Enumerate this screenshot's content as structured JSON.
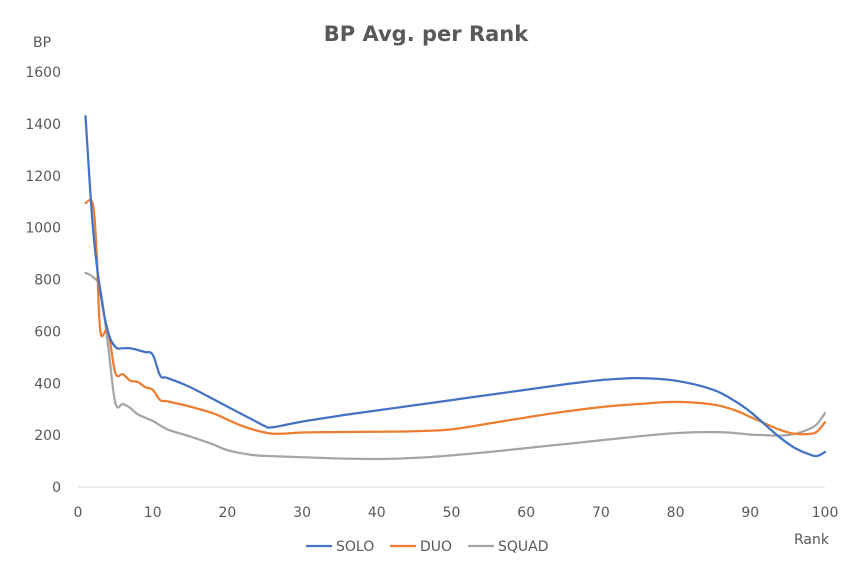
{
  "chart_data": {
    "type": "line",
    "title": "BP Avg. per Rank",
    "xlabel": "Rank",
    "ylabel": "BP",
    "xlim": [
      0,
      100
    ],
    "ylim": [
      0,
      1600
    ],
    "xticks": [
      0,
      10,
      20,
      30,
      40,
      50,
      60,
      70,
      80,
      90,
      100
    ],
    "yticks": [
      0,
      200,
      400,
      600,
      800,
      1000,
      1200,
      1400,
      1600
    ],
    "grid": false,
    "legend": "bottom",
    "colors": {
      "SOLO": "#4472c4",
      "DUO": "#ed7d31",
      "SQUAD": "#a5a5a5"
    },
    "series": [
      {
        "name": "SOLO",
        "points": [
          [
            1,
            1430
          ],
          [
            2,
            1000
          ],
          [
            3,
            750
          ],
          [
            4,
            600
          ],
          [
            5,
            540
          ],
          [
            6,
            535
          ],
          [
            7,
            535
          ],
          [
            8,
            528
          ],
          [
            9,
            520
          ],
          [
            10,
            510
          ],
          [
            11,
            430
          ],
          [
            12,
            420
          ],
          [
            15,
            385
          ],
          [
            20,
            310
          ],
          [
            24,
            250
          ],
          [
            25,
            235
          ],
          [
            26,
            230
          ],
          [
            30,
            252
          ],
          [
            35,
            275
          ],
          [
            40,
            295
          ],
          [
            45,
            315
          ],
          [
            50,
            335
          ],
          [
            55,
            355
          ],
          [
            60,
            375
          ],
          [
            65,
            395
          ],
          [
            70,
            412
          ],
          [
            75,
            420
          ],
          [
            80,
            410
          ],
          [
            85,
            375
          ],
          [
            88,
            330
          ],
          [
            90,
            290
          ],
          [
            92,
            240
          ],
          [
            94,
            190
          ],
          [
            96,
            150
          ],
          [
            98,
            125
          ],
          [
            99,
            120
          ],
          [
            100,
            135
          ]
        ]
      },
      {
        "name": "DUO",
        "points": [
          [
            1,
            1095
          ],
          [
            2,
            1090
          ],
          [
            2.5,
            900
          ],
          [
            3,
            600
          ],
          [
            4,
            600
          ],
          [
            5,
            440
          ],
          [
            6,
            435
          ],
          [
            7,
            410
          ],
          [
            8,
            405
          ],
          [
            9,
            385
          ],
          [
            10,
            375
          ],
          [
            11,
            335
          ],
          [
            12,
            330
          ],
          [
            15,
            310
          ],
          [
            18,
            285
          ],
          [
            20,
            260
          ],
          [
            22,
            235
          ],
          [
            25,
            210
          ],
          [
            27,
            205
          ],
          [
            30,
            210
          ],
          [
            35,
            212
          ],
          [
            40,
            213
          ],
          [
            45,
            215
          ],
          [
            50,
            222
          ],
          [
            55,
            245
          ],
          [
            60,
            268
          ],
          [
            65,
            290
          ],
          [
            70,
            308
          ],
          [
            75,
            320
          ],
          [
            80,
            328
          ],
          [
            85,
            318
          ],
          [
            88,
            295
          ],
          [
            90,
            270
          ],
          [
            92,
            245
          ],
          [
            94,
            220
          ],
          [
            96,
            205
          ],
          [
            98,
            205
          ],
          [
            99,
            215
          ],
          [
            100,
            250
          ]
        ]
      },
      {
        "name": "SQUAD",
        "points": [
          [
            1,
            825
          ],
          [
            2,
            810
          ],
          [
            3,
            760
          ],
          [
            4,
            550
          ],
          [
            5,
            325
          ],
          [
            6,
            320
          ],
          [
            7,
            305
          ],
          [
            8,
            280
          ],
          [
            10,
            255
          ],
          [
            12,
            222
          ],
          [
            15,
            195
          ],
          [
            18,
            165
          ],
          [
            20,
            142
          ],
          [
            23,
            125
          ],
          [
            25,
            120
          ],
          [
            30,
            115
          ],
          [
            35,
            110
          ],
          [
            40,
            108
          ],
          [
            45,
            112
          ],
          [
            50,
            122
          ],
          [
            55,
            135
          ],
          [
            60,
            150
          ],
          [
            65,
            165
          ],
          [
            70,
            180
          ],
          [
            75,
            195
          ],
          [
            80,
            208
          ],
          [
            85,
            212
          ],
          [
            88,
            208
          ],
          [
            90,
            202
          ],
          [
            92,
            200
          ],
          [
            94,
            198
          ],
          [
            96,
            205
          ],
          [
            98,
            225
          ],
          [
            99,
            245
          ],
          [
            100,
            285
          ]
        ]
      }
    ]
  }
}
